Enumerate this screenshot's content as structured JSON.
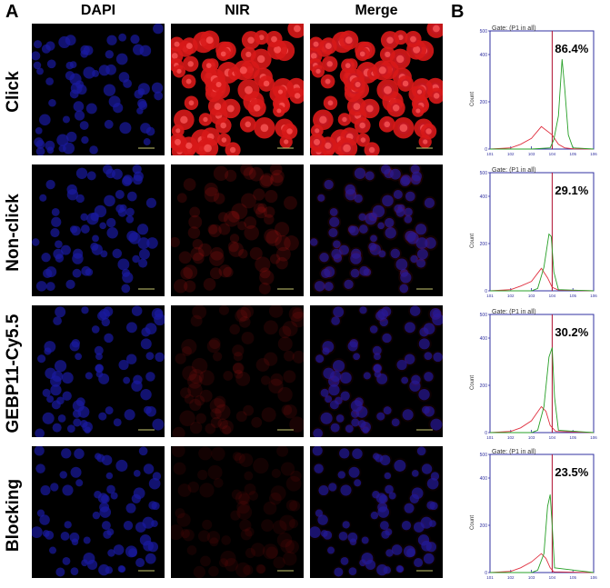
{
  "figure": {
    "panel_a_label": "A",
    "panel_b_label": "B",
    "columns": [
      "DAPI",
      "NIR",
      "Merge"
    ],
    "rows": [
      "Click",
      "Non-click",
      "GEBP11-Cy5.5",
      "Blocking"
    ],
    "colors": {
      "dapi": "#1a1aa0",
      "nir": "#d81818",
      "axis_box": "#3030a0",
      "gate_line": "#b01030",
      "control_trace": "#e03040",
      "sample_trace": "#28a028",
      "scale_bar": "#c8c870"
    },
    "nir_intensity": [
      1.0,
      0.18,
      0.13,
      0.1
    ]
  },
  "histograms": {
    "gate_text": "Gate: (P1 in all)",
    "y_axis_label": "Count",
    "y_ticks": [
      "0",
      "200",
      "400",
      "500"
    ],
    "x_ticks": [
      "10^1",
      "10^2",
      "10^3",
      "10^4",
      "10^5",
      "10^6"
    ],
    "panels": [
      {
        "percent": "86.4%"
      },
      {
        "percent": "29.1%"
      },
      {
        "percent": "30.2%"
      },
      {
        "percent": "23.5%"
      }
    ]
  },
  "chart_data": [
    {
      "type": "line",
      "title": "",
      "xlabel": "",
      "ylabel": "Count",
      "ylim": [
        0,
        500
      ],
      "x_scale": "log",
      "xlim": [
        10,
        1000000
      ],
      "annotation": "86.4%",
      "series": [
        {
          "x": [
            10,
            100,
            300,
            1000,
            3000,
            10000,
            20000,
            40000,
            100000,
            1000000
          ],
          "values": [
            0,
            5,
            20,
            45,
            95,
            60,
            20,
            5,
            1,
            0
          ]
        },
        {
          "x": [
            10,
            1000,
            8000,
            12000,
            20000,
            30000,
            40000,
            60000,
            100000,
            1000000
          ],
          "values": [
            0,
            0,
            5,
            40,
            140,
            380,
            260,
            60,
            5,
            0
          ]
        }
      ]
    },
    {
      "type": "line",
      "title": "",
      "xlabel": "",
      "ylabel": "Count",
      "ylim": [
        0,
        500
      ],
      "x_scale": "log",
      "xlim": [
        10,
        1000000
      ],
      "annotation": "29.1%",
      "series": [
        {
          "x": [
            10,
            100,
            300,
            1000,
            3000,
            6000,
            10000,
            20000,
            1000000
          ],
          "values": [
            0,
            5,
            20,
            40,
            95,
            55,
            15,
            3,
            0
          ]
        },
        {
          "x": [
            10,
            1000,
            2000,
            4000,
            7000,
            9000,
            12000,
            20000,
            1000000
          ],
          "values": [
            0,
            0,
            10,
            100,
            240,
            230,
            80,
            5,
            0
          ]
        }
      ]
    },
    {
      "type": "line",
      "title": "",
      "xlabel": "",
      "ylabel": "Count",
      "ylim": [
        0,
        500
      ],
      "x_scale": "log",
      "xlim": [
        10,
        1000000
      ],
      "annotation": "30.2%",
      "series": [
        {
          "x": [
            10,
            100,
            300,
            1000,
            3000,
            5000,
            8000,
            15000,
            1000000
          ],
          "values": [
            0,
            5,
            20,
            50,
            110,
            90,
            30,
            5,
            0
          ]
        },
        {
          "x": [
            10,
            1000,
            2000,
            4000,
            7000,
            10000,
            13000,
            20000,
            1000000
          ],
          "values": [
            0,
            0,
            10,
            110,
            320,
            360,
            150,
            10,
            0
          ]
        }
      ]
    },
    {
      "type": "line",
      "title": "",
      "xlabel": "",
      "ylabel": "Count",
      "ylim": [
        0,
        500
      ],
      "x_scale": "log",
      "xlim": [
        10,
        1000000
      ],
      "annotation": "23.5%",
      "series": [
        {
          "x": [
            10,
            100,
            300,
            1000,
            3000,
            5000,
            8000,
            12000,
            1000000
          ],
          "values": [
            0,
            5,
            20,
            45,
            80,
            60,
            20,
            3,
            0
          ]
        },
        {
          "x": [
            10,
            1000,
            2000,
            4000,
            6000,
            8000,
            10000,
            13000,
            1000000
          ],
          "values": [
            0,
            0,
            10,
            80,
            280,
            330,
            200,
            20,
            0
          ]
        }
      ]
    }
  ]
}
